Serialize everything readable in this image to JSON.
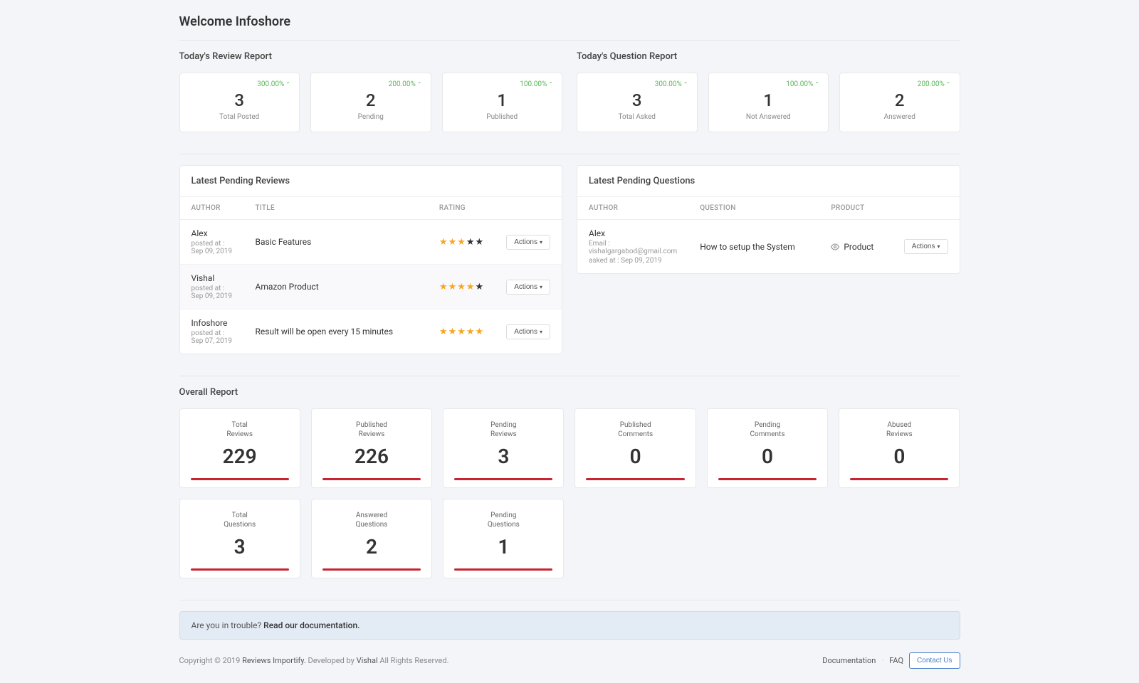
{
  "page_title": "Welcome Infoshore",
  "review_report": {
    "title": "Today's Review Report",
    "cards": [
      {
        "pct": "300.00%",
        "value": "3",
        "label": "Total Posted"
      },
      {
        "pct": "200.00%",
        "value": "2",
        "label": "Pending"
      },
      {
        "pct": "100.00%",
        "value": "1",
        "label": "Published"
      }
    ]
  },
  "question_report": {
    "title": "Today's Question Report",
    "cards": [
      {
        "pct": "300.00%",
        "value": "3",
        "label": "Total Asked"
      },
      {
        "pct": "100.00%",
        "value": "1",
        "label": "Not Answered"
      },
      {
        "pct": "200.00%",
        "value": "2",
        "label": "Answered"
      }
    ]
  },
  "pending_reviews": {
    "title": "Latest Pending Reviews",
    "headers": {
      "author": "AUTHOR",
      "title": "TITLE",
      "rating": "RATING"
    },
    "rows": [
      {
        "author": "Alex",
        "meta": "posted at : Sep 09, 2019",
        "title": "Basic Features",
        "stars": 3,
        "alt": false
      },
      {
        "author": "Vishal",
        "meta": "posted at : Sep 09, 2019",
        "title": "Amazon Product",
        "stars": 4,
        "alt": true
      },
      {
        "author": "Infoshore",
        "meta": "posted at : Sep 07, 2019",
        "title": "Result will be open every 15 minutes",
        "stars": 5,
        "alt": false
      }
    ],
    "actions_label": "Actions"
  },
  "pending_questions": {
    "title": "Latest Pending Questions",
    "headers": {
      "author": "AUTHOR",
      "question": "QUESTION",
      "product": "PRODUCT"
    },
    "rows": [
      {
        "author": "Alex",
        "meta1": "Email : vishalgargabod@gmail.com",
        "meta2": "asked at : Sep 09, 2019",
        "question": "How to setup the System",
        "product": "Product"
      }
    ],
    "actions_label": "Actions"
  },
  "overall": {
    "title": "Overall Report",
    "cards_row1": [
      {
        "label1": "Total",
        "label2": "Reviews",
        "value": "229"
      },
      {
        "label1": "Published",
        "label2": "Reviews",
        "value": "226"
      },
      {
        "label1": "Pending",
        "label2": "Reviews",
        "value": "3"
      },
      {
        "label1": "Published",
        "label2": "Comments",
        "value": "0"
      },
      {
        "label1": "Pending",
        "label2": "Comments",
        "value": "0"
      },
      {
        "label1": "Abused",
        "label2": "Reviews",
        "value": "0"
      }
    ],
    "cards_row2": [
      {
        "label1": "Total",
        "label2": "Questions",
        "value": "3"
      },
      {
        "label1": "Answered",
        "label2": "Questions",
        "value": "2"
      },
      {
        "label1": "Pending",
        "label2": "Questions",
        "value": "1"
      }
    ]
  },
  "alert": {
    "text": "Are you in trouble? ",
    "link": "Read our documentation."
  },
  "footer": {
    "copyright_pre": "Copyright © 2019 ",
    "app_name": "Reviews Importify.",
    "dev_pre": " Developed by ",
    "dev_name": "Vishal",
    "rights": " All Rights Reserved.",
    "doc": "Documentation",
    "faq": "FAQ",
    "contact": "Contact Us"
  }
}
